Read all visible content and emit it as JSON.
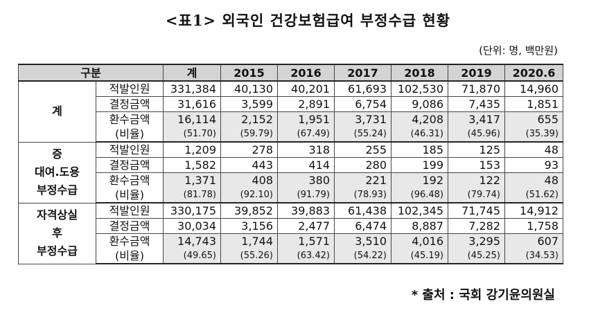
{
  "title": "<표1> 외국인 건강보험급여 부정수급 현황",
  "unit_note": "(단위: 명, 백만원)",
  "header": [
    "구분",
    "계",
    "2015",
    "2016",
    "2017",
    "2018",
    "2019",
    "2020.6"
  ],
  "groups": [
    {
      "category": [
        "계"
      ],
      "rows": [
        {
          "label": "적발인원",
          "values": [
            "331,384",
            "40,130",
            "40,201",
            "61,693",
            "102,530",
            "71,870",
            "14,960"
          ]
        },
        {
          "label": "결정금액",
          "values": [
            "31,616",
            "3,599",
            "2,891",
            "6,754",
            "9,086",
            "7,435",
            "1,851"
          ]
        },
        {
          "label": "환수금액",
          "label2": "(비율)",
          "values": [
            "16,114",
            "2,152",
            "1,951",
            "3,731",
            "4,208",
            "3,417",
            "655"
          ],
          "ratios": [
            "(51.70)",
            "(59.79)",
            "(67.49)",
            "(55.24)",
            "(46.31)",
            "(45.96)",
            "(35.39)"
          ]
        }
      ]
    },
    {
      "category": [
        "증",
        "대여.도용",
        "부정수급"
      ],
      "rows": [
        {
          "label": "적발인원",
          "values": [
            "1,209",
            "278",
            "318",
            "255",
            "185",
            "125",
            "48"
          ]
        },
        {
          "label": "결정금액",
          "values": [
            "1,582",
            "443",
            "414",
            "280",
            "199",
            "153",
            "93"
          ]
        },
        {
          "label": "환수금액",
          "label2": "(비율)",
          "values": [
            "1,371",
            "408",
            "380",
            "221",
            "192",
            "122",
            "48"
          ],
          "ratios": [
            "(81.78)",
            "(92.10)",
            "(91.79)",
            "(78.93)",
            "(96.48)",
            "(79.74)",
            "(51.62)"
          ]
        }
      ]
    },
    {
      "category": [
        "자격상실",
        "후",
        "부정수급"
      ],
      "rows": [
        {
          "label": "적발인원",
          "values": [
            "330,175",
            "39,852",
            "39,883",
            "61,438",
            "102,345",
            "71,745",
            "14,912"
          ]
        },
        {
          "label": "결정금액",
          "values": [
            "30,034",
            "3,156",
            "2,477",
            "6,474",
            "8,887",
            "7,282",
            "1,758"
          ]
        },
        {
          "label": "환수금액",
          "label2": "(비율)",
          "values": [
            "14,743",
            "1,744",
            "1,571",
            "3,510",
            "4,016",
            "3,295",
            "607"
          ],
          "ratios": [
            "(49.65)",
            "(55.26)",
            "(63.42)",
            "(54.22)",
            "(45.19)",
            "(45.25)",
            "(34.53)"
          ]
        }
      ]
    }
  ],
  "source": "* 출처 : 국회 강기윤의원실"
}
